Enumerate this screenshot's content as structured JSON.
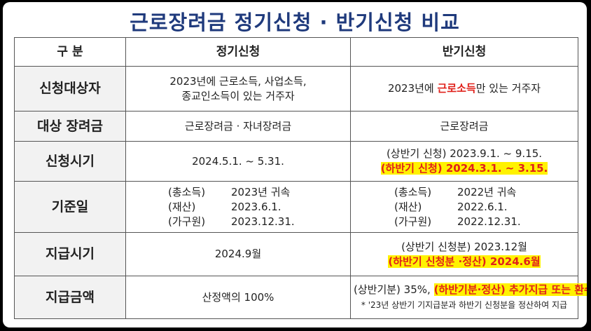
{
  "title": "근로장려금 정기신청 · 반기신청 비교",
  "table": {
    "header": [
      "구 분",
      "정기신청",
      "반기신청"
    ],
    "rows": [
      {
        "label": "신청대상자",
        "regular": {
          "lines": [
            [
              {
                "text": "2023년에 근로소득, 사업소득,"
              }
            ],
            [
              {
                "text": "종교인소득이 있는 거주자"
              }
            ]
          ]
        },
        "semiannual": {
          "lines": [
            [
              {
                "text": "2023년에 "
              },
              {
                "text": "근로소득",
                "red": true
              },
              {
                "text": "만 있는 거주자"
              }
            ]
          ]
        }
      },
      {
        "label": "대상 장려금",
        "regular": {
          "lines": [
            [
              {
                "text": "근로장려금 · 자녀장려금"
              }
            ]
          ]
        },
        "semiannual": {
          "lines": [
            [
              {
                "text": "근로장려금"
              }
            ]
          ]
        }
      },
      {
        "label": "신청시기",
        "regular": {
          "lines": [
            [
              {
                "text": "2024.5.1. ~ 5.31."
              }
            ]
          ]
        },
        "semiannual": {
          "lines": [
            [
              {
                "text": "(상반기 신청) 2023.9.1. ~ 9.15."
              }
            ],
            [
              {
                "text": "(하반기 신청) 2024.3.1. ~ 3.15.",
                "red": true,
                "highlight": true
              }
            ]
          ]
        }
      },
      {
        "label": "기준일",
        "regular": {
          "columns": true,
          "lines": [
            [
              {
                "text": "(총소득)"
              },
              {
                "text": "2023년 귀속"
              }
            ],
            [
              {
                "text": "(재산)"
              },
              {
                "text": "2023.6.1."
              }
            ],
            [
              {
                "text": "(가구원)"
              },
              {
                "text": "2023.12.31."
              }
            ]
          ]
        },
        "semiannual": {
          "columns": true,
          "lines": [
            [
              {
                "text": "(총소득)"
              },
              {
                "text": "2022년 귀속"
              }
            ],
            [
              {
                "text": "(재산)"
              },
              {
                "text": "2022.6.1."
              }
            ],
            [
              {
                "text": "(가구원)"
              },
              {
                "text": "2022.12.31."
              }
            ]
          ]
        }
      },
      {
        "label": "지급시기",
        "regular": {
          "lines": [
            [
              {
                "text": "2024.9월"
              }
            ]
          ]
        },
        "semiannual": {
          "lines": [
            [
              {
                "text": "(상반기 신청분) 2023.12월"
              }
            ],
            [
              {
                "text": "(하반기 신청분 ·정산) 2024.6월",
                "red": true,
                "highlight": true
              }
            ]
          ]
        }
      },
      {
        "label": "지급금액",
        "regular": {
          "lines": [
            [
              {
                "text": "산정액의 100%"
              }
            ]
          ]
        },
        "semiannual": {
          "lines": [
            [
              {
                "text": "(상반기분) 35%, "
              },
              {
                "text": "(하반기분·정산) 추가지급 또는 환수*",
                "red": true,
                "highlight": true
              }
            ],
            [
              {
                "text": "* '23년 상반기 기지급분과 하반기 신청분을 정산하여 지급",
                "small": true
              }
            ]
          ]
        }
      }
    ]
  }
}
